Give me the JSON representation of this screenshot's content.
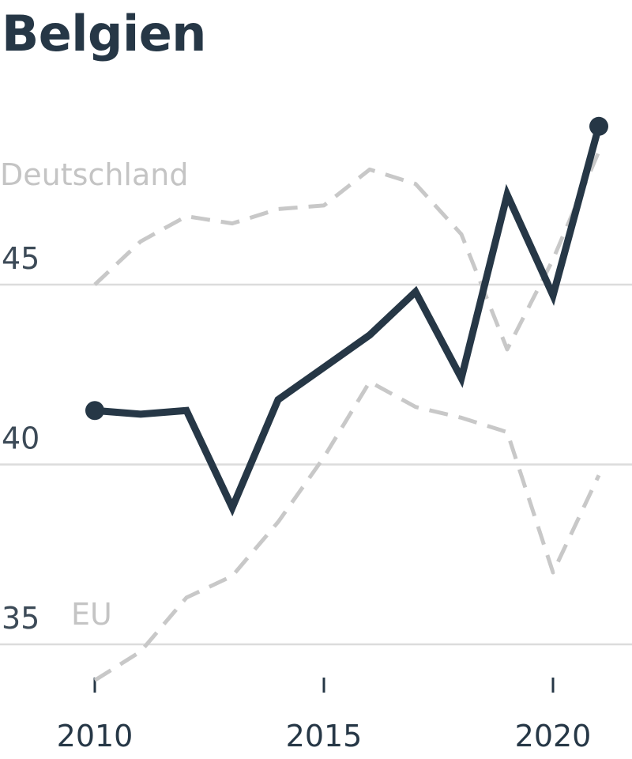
{
  "chart_data": {
    "type": "line",
    "title": "Belgien",
    "xlabel": "",
    "ylabel": "",
    "x": [
      2010,
      2011,
      2012,
      2013,
      2014,
      2015,
      2016,
      2017,
      2018,
      2019,
      2020,
      2021
    ],
    "xticks": [
      "2010",
      "2015",
      "2020"
    ],
    "yticks": [
      "35",
      "40",
      "45"
    ],
    "ylim": [
      34,
      50
    ],
    "grid": true,
    "series": [
      {
        "name": "",
        "role": "highlight",
        "color": "#263746",
        "values": [
          41.5,
          41.4,
          41.5,
          38.8,
          41.8,
          42.7,
          43.6,
          44.8,
          42.4,
          47.5,
          44.7,
          49.4
        ]
      },
      {
        "name": "Deutschland",
        "role": "comparison",
        "color": "#c8c8c8",
        "values": [
          45.0,
          46.2,
          46.9,
          46.7,
          47.1,
          47.2,
          48.2,
          47.8,
          46.4,
          43.2,
          45.7,
          48.7
        ]
      },
      {
        "name": "EU",
        "role": "comparison",
        "color": "#c8c8c8",
        "values": [
          34.0,
          34.8,
          36.3,
          36.9,
          38.4,
          40.2,
          42.3,
          41.6,
          41.3,
          40.9,
          37.0,
          39.7
        ]
      }
    ]
  }
}
